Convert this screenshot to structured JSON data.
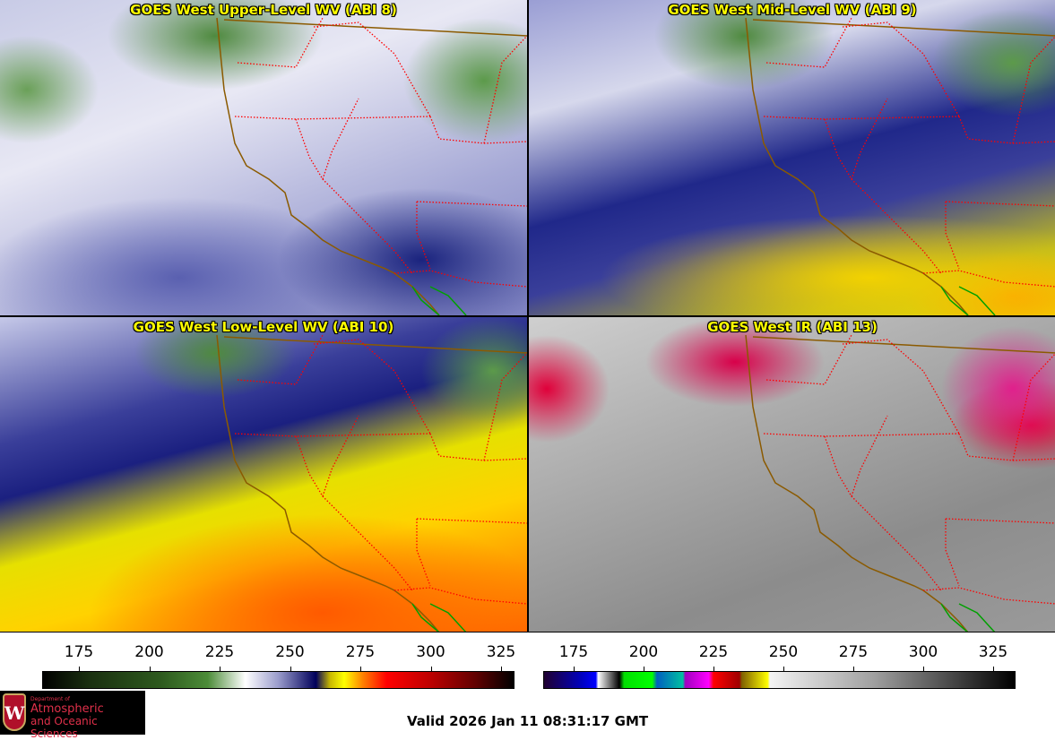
{
  "panels": [
    {
      "title": "GOES West Upper-Level WV (ABI 8)"
    },
    {
      "title": "GOES West Mid-Level WV (ABI 9)"
    },
    {
      "title": "GOES West Low-Level WV (ABI 10)"
    },
    {
      "title": "GOES West IR (ABI 13)"
    }
  ],
  "colorbars": [
    {
      "name": "water vapor",
      "ticks": [
        "175",
        "200",
        "225",
        "250",
        "275",
        "300",
        "325"
      ]
    },
    {
      "name": "infrared",
      "ticks": [
        "175",
        "200",
        "225",
        "250",
        "275",
        "300",
        "325"
      ]
    }
  ],
  "logo": {
    "line1": "Department of",
    "line2": "Atmospheric",
    "line3": "and Oceanic Sciences",
    "crest": "W"
  },
  "valid_time": "Valid 2026 Jan 11 08:31:17 GMT",
  "colors": {
    "title": "#ffff00",
    "state_borders": "#ff0000",
    "coastline": "#8b5a00",
    "mexico_coast": "#00a000"
  }
}
